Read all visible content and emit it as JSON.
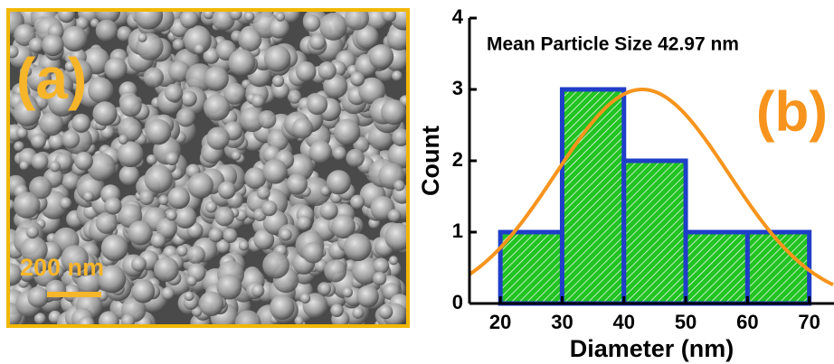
{
  "panel_a": {
    "label": "(a)",
    "scale_bar": "200 nm"
  },
  "chart_data": {
    "type": "histogram",
    "annotation": "Mean Particle Size  42.97 nm",
    "panel_label": "(b)",
    "xlabel": "Diameter (nm)",
    "ylabel": "Count",
    "bins": [
      20,
      30,
      40,
      50,
      60,
      70
    ],
    "counts": [
      1,
      3,
      2,
      1,
      1
    ],
    "color": "#22c322",
    "edge_color": "#1f3fc8",
    "fit": {
      "mean": 42.97,
      "sigma": 14,
      "amplitude": 3,
      "color": "#f7941d"
    },
    "xlim": [
      15,
      74
    ],
    "ylim": [
      0,
      4
    ],
    "xticks": [
      20,
      30,
      40,
      50,
      60,
      70
    ],
    "yticks": [
      0,
      1,
      2,
      3,
      4
    ]
  }
}
